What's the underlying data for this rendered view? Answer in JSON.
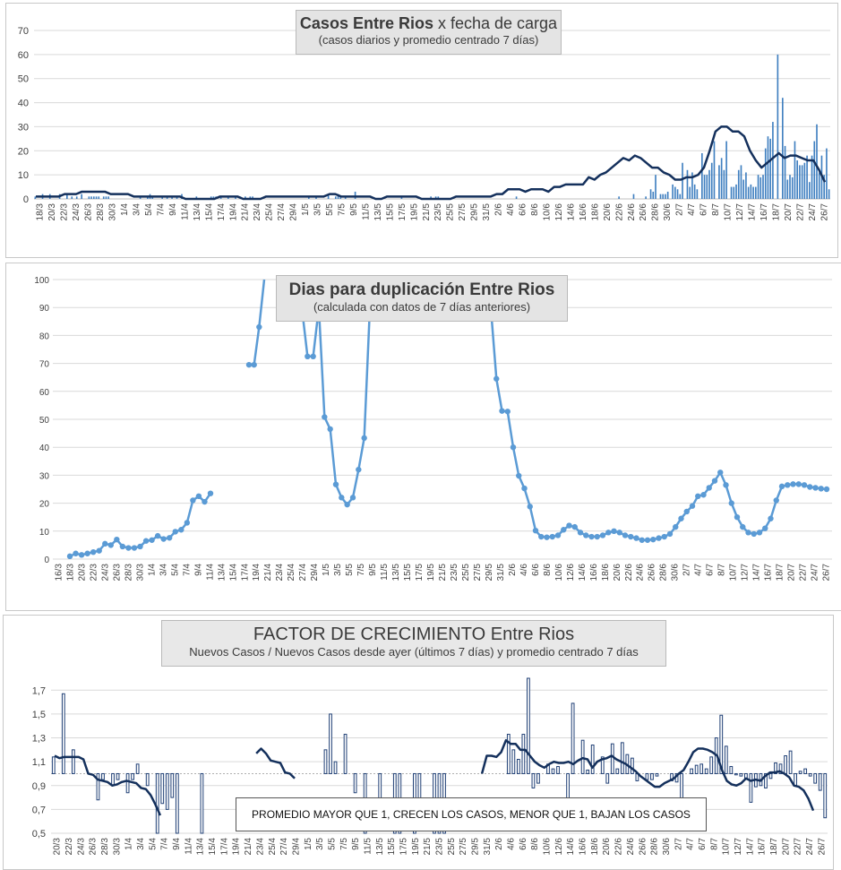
{
  "colors": {
    "bar": "#3f7fc0",
    "line1": "#14305c",
    "line2": "#5b9bd5",
    "bar3": "#1f3f75",
    "grid": "#d9d9d9",
    "axis": "#bfbfbf",
    "text": "#404040"
  },
  "charts": [
    {
      "title_bold": "Casos Entre Rios",
      "title_rest": " x fecha de carga",
      "subtitle": "(casos diarios y promedio  centrado 7 días)"
    },
    {
      "title": "Dias para duplicación Entre Rios",
      "subtitle": "(calculada con datos de 7 días anteriores)"
    },
    {
      "title_a": "FACTOR DE CRECIMIENTO",
      "title_b": " Entre Rios",
      "subtitle": "Nuevos Casos  / Nuevos Casos desde ayer (últimos 7 días) y promedio  centrado 7 días",
      "note": "PROMEDIO MAYOR QUE 1, CRECEN LOS CASOS, MENOR QUE 1, BAJAN LOS CASOS"
    }
  ],
  "chart_data": [
    {
      "type": "bar",
      "title": "Casos Entre Rios x fecha de carga",
      "subtitle": "(casos diarios y promedio  centrado 7 días)",
      "ylim": [
        0,
        70
      ],
      "y_ticks": [
        0,
        10,
        20,
        30,
        40,
        50,
        60,
        70
      ],
      "x_tick_labels": [
        "18/3",
        "20/3",
        "22/3",
        "24/3",
        "26/3",
        "28/3",
        "30/3",
        "1/4",
        "3/4",
        "5/4",
        "7/4",
        "9/4",
        "11/4",
        "13/4",
        "15/4",
        "17/4",
        "19/4",
        "21/4",
        "23/4",
        "25/4",
        "27/4",
        "29/4",
        "1/5",
        "3/5",
        "5/5",
        "7/5",
        "9/5",
        "11/5",
        "13/5",
        "15/5",
        "17/5",
        "19/5",
        "21/5",
        "23/5",
        "25/5",
        "27/5",
        "29/5",
        "31/5",
        "2/6",
        "4/6",
        "6/6",
        "8/6",
        "10/6",
        "12/6",
        "14/6",
        "16/6",
        "18/6",
        "20/6",
        "22/6",
        "24/6",
        "26/6",
        "28/6",
        "30/6",
        "2/7",
        "4/7",
        "6/7",
        "8/7",
        "10/7",
        "12/7",
        "14/7",
        "16/7",
        "18/7",
        "20/7",
        "22/7",
        "24/7",
        "26/7"
      ],
      "series": [
        {
          "kind": "bar",
          "values": [
            1,
            0,
            0,
            2,
            0,
            0,
            2,
            0,
            0,
            0,
            2,
            0,
            0,
            2,
            0,
            1,
            0,
            1,
            0,
            2,
            0,
            0,
            1,
            1,
            1,
            1,
            1,
            0,
            1,
            1,
            1,
            0,
            0,
            0,
            0,
            0,
            0,
            0,
            0,
            0,
            0,
            0,
            0,
            1,
            0,
            0,
            1,
            2,
            1,
            0,
            0,
            0,
            1,
            0,
            1,
            0,
            1,
            0,
            1,
            0,
            2,
            0,
            0,
            0,
            0,
            0,
            1,
            0,
            0,
            0,
            0,
            0,
            1,
            1,
            1,
            0,
            1,
            0,
            0,
            1,
            0,
            0,
            1,
            0,
            1,
            0,
            1,
            0,
            1,
            1,
            0,
            0,
            0,
            0,
            0,
            0,
            0,
            0,
            0,
            0,
            0,
            0,
            0,
            0,
            0,
            0,
            0,
            0,
            0,
            0,
            0,
            0,
            1,
            0,
            0,
            1,
            0,
            0,
            0,
            0,
            2,
            0,
            0,
            1,
            2,
            1,
            0,
            1,
            0,
            0,
            0,
            3,
            0,
            0,
            0,
            0,
            0,
            0,
            0,
            0,
            0,
            0,
            0,
            0,
            0,
            0,
            0,
            0,
            0,
            0,
            1,
            0,
            0,
            0,
            0,
            0,
            0,
            0,
            0,
            0,
            0,
            0,
            1,
            0,
            1,
            1,
            0,
            0,
            0,
            0,
            0,
            0,
            0,
            0,
            0,
            0,
            0,
            0,
            0,
            0,
            0,
            0,
            0,
            0,
            0,
            0,
            0,
            0,
            0,
            0,
            0,
            0,
            0,
            0,
            0,
            0,
            0,
            1,
            0,
            0,
            0,
            0,
            0,
            0,
            0,
            0,
            0,
            0,
            0,
            0,
            0,
            0,
            0,
            0,
            0,
            0,
            0,
            0,
            0,
            0,
            0,
            0,
            0,
            0,
            0,
            0,
            0,
            0,
            0,
            0,
            0,
            0,
            0,
            0,
            0,
            0,
            0,
            0,
            0,
            1,
            0,
            0,
            0,
            0,
            0,
            2,
            0,
            0,
            0,
            0,
            1,
            0,
            4,
            3,
            10,
            0,
            2,
            2,
            2,
            3,
            0,
            6,
            5,
            4,
            2,
            15,
            0,
            12,
            5,
            11,
            6,
            4,
            0,
            19,
            10,
            10,
            12,
            15,
            24,
            0,
            14,
            17,
            12,
            24,
            0,
            5,
            5,
            6,
            12,
            14,
            8,
            11,
            5,
            6,
            5,
            5,
            10,
            9,
            10,
            21,
            26,
            25,
            32,
            0,
            60,
            0,
            42,
            22,
            8,
            10,
            9,
            24,
            16,
            14,
            14,
            15,
            18,
            7,
            18,
            24,
            31,
            11,
            18,
            10,
            21,
            4
          ]
        },
        {
          "kind": "line",
          "values": [
            1,
            1,
            1,
            1,
            1,
            2,
            2,
            2,
            3,
            3,
            3,
            3,
            3,
            2,
            2,
            2,
            2,
            1,
            1,
            1,
            1,
            1,
            1,
            1,
            1,
            1,
            0,
            0,
            0,
            0,
            0,
            0,
            1,
            1,
            1,
            1,
            0,
            0,
            0,
            0,
            1,
            1,
            1,
            1,
            1,
            1,
            1,
            1,
            1,
            1,
            1,
            2,
            2,
            1,
            1,
            1,
            1,
            1,
            1,
            0,
            0,
            1,
            1,
            1,
            1,
            1,
            1,
            0,
            0,
            0,
            0,
            0,
            0,
            1,
            1,
            1,
            1,
            1,
            1,
            1,
            2,
            2,
            4,
            4,
            4,
            3,
            4,
            4,
            4,
            3,
            5,
            5,
            6,
            6,
            6,
            6,
            9,
            8,
            10,
            11,
            13,
            15,
            17,
            16,
            18,
            17,
            15,
            13,
            13,
            11,
            10,
            8,
            8,
            9,
            9,
            10,
            13,
            20,
            28,
            30,
            30,
            28,
            28,
            26,
            20,
            16,
            13,
            15,
            17,
            19,
            17,
            18,
            18,
            17,
            16,
            16,
            12,
            7
          ]
        }
      ]
    },
    {
      "type": "line",
      "title": "Dias para duplicación Entre Rios",
      "subtitle": "(calculada con datos de 7 días anteriores)",
      "ylim": [
        0,
        100
      ],
      "y_ticks": [
        0,
        10,
        20,
        30,
        40,
        50,
        60,
        70,
        80,
        90,
        100
      ],
      "x_tick_labels": [
        "16/3",
        "18/3",
        "20/3",
        "22/3",
        "24/3",
        "26/3",
        "28/3",
        "30/3",
        "1/4",
        "3/4",
        "5/4",
        "7/4",
        "9/4",
        "11/4",
        "13/4",
        "15/4",
        "17/4",
        "19/4",
        "21/4",
        "23/4",
        "25/4",
        "27/4",
        "29/4",
        "1/5",
        "3/5",
        "5/5",
        "7/5",
        "9/5",
        "11/5",
        "13/5",
        "15/5",
        "17/5",
        "19/5",
        "21/5",
        "23/5",
        "25/5",
        "27/5",
        "29/5",
        "31/5",
        "2/6",
        "4/6",
        "6/6",
        "8/6",
        "10/6",
        "12/6",
        "14/6",
        "16/6",
        "18/6",
        "20/6",
        "22/6",
        "24/6",
        "26/6",
        "28/6",
        "30/6",
        "2/7",
        "4/7",
        "6/7",
        "8/7",
        "10/7",
        "12/7",
        "14/7",
        "16/7",
        "18/7",
        "20/7",
        "22/7",
        "24/7",
        "26/7"
      ],
      "segments": [
        [
          1,
          2,
          1.5,
          2,
          2.5,
          3,
          5.5,
          5,
          7,
          4.5,
          4,
          4,
          4.5,
          6.5,
          6.8,
          8.3,
          7.2,
          7.6,
          9.8,
          10.5,
          13,
          21,
          22.5,
          20.5,
          23.5
        ],
        [
          69.5,
          69.5,
          83,
          100
        ],
        [
          90,
          72.5,
          72.5,
          90,
          50.8,
          46.5,
          26.7,
          22,
          19.5,
          22,
          32,
          43.3,
          90
        ],
        [
          90,
          64.5,
          53,
          52.8,
          40,
          29.8,
          25.3,
          18.8,
          10.2,
          8,
          7.8,
          8,
          8.5,
          10.5,
          12,
          11.5,
          9.5,
          8.5,
          8,
          8,
          8.5,
          9.5,
          10,
          9.5,
          8.5,
          8,
          7.5,
          6.8,
          6.8,
          7,
          7.5,
          8,
          9,
          11.5,
          14.5,
          17,
          19,
          22.5,
          23,
          25.5,
          28,
          31,
          26.5,
          20,
          15,
          11.5,
          9.5,
          9,
          9.5,
          11,
          14.5,
          21,
          26,
          26.5,
          26.8,
          26.8,
          26.5,
          25.8,
          25.5,
          25.2,
          25
        ]
      ]
    },
    {
      "type": "bar",
      "title": "FACTOR DE CRECIMIENTO Entre Rios",
      "subtitle": "Nuevos Casos  / Nuevos Casos desde ayer (últimos 7 días) y promedio  centrado 7 días",
      "ylim": [
        0.5,
        1.8
      ],
      "baseline": 1.0,
      "y_ticks": [
        "0,5",
        "0,7",
        "0,9",
        "1,1",
        "1,3",
        "1,5",
        "1,7"
      ],
      "x_tick_labels": [
        "20/3",
        "22/3",
        "24/3",
        "26/3",
        "28/3",
        "30/3",
        "1/4",
        "3/4",
        "5/4",
        "7/4",
        "9/4",
        "11/4",
        "13/4",
        "15/4",
        "17/4",
        "19/4",
        "21/4",
        "23/4",
        "25/4",
        "27/4",
        "29/4",
        "1/5",
        "3/5",
        "5/5",
        "7/5",
        "9/5",
        "11/5",
        "13/5",
        "15/5",
        "17/5",
        "19/5",
        "21/5",
        "23/5",
        "25/5",
        "27/5",
        "29/5",
        "31/5",
        "2/6",
        "4/6",
        "6/6",
        "8/6",
        "10/6",
        "12/6",
        "14/6",
        "16/6",
        "18/6",
        "20/6",
        "22/6",
        "24/6",
        "26/6",
        "28/6",
        "30/6",
        "2/7",
        "4/7",
        "6/7",
        "8/7",
        "10/7",
        "12/7",
        "14/7",
        "16/7",
        "18/7",
        "20/7",
        "22/7",
        "24/7",
        "26/7"
      ],
      "series": [
        {
          "kind": "bar",
          "values": [
            1.14,
            1.0,
            1.67,
            1.0,
            1.2,
            1.0,
            1.0,
            1.0,
            1.0,
            0.78,
            0.95,
            1.0,
            0.9,
            0.95,
            1.0,
            0.84,
            0.95,
            1.08,
            1.0,
            0.9,
            1.0,
            0.5,
            0.75,
            0.7,
            0.8,
            0.5,
            1.0,
            1.0,
            1.0,
            1.0,
            0.5,
            1.0,
            1.0,
            1.0,
            1.0,
            1.0,
            1.0,
            1.0,
            1.0,
            1.0,
            1.0,
            1.0,
            1.0,
            1.0,
            1.0,
            1.0,
            1.0,
            1.0,
            1.0,
            1.0,
            1.0,
            1.0,
            1.0,
            1.0,
            1.0,
            1.2,
            1.5,
            1.1,
            1.0,
            1.33,
            1.0,
            0.84,
            1.0,
            0.5,
            1.0,
            1.0,
            0.7,
            1.0,
            1.0,
            0.5,
            0.5,
            1.0,
            1.0,
            0.5,
            0.7,
            1.0,
            1.0,
            0.5,
            0.5,
            0.5,
            1.0,
            1.0,
            1.0,
            1.0,
            1.0,
            1.0,
            1.0,
            1.0,
            1.0,
            1.0,
            1.0,
            1.0,
            1.33,
            1.2,
            1.12,
            1.33,
            1.8,
            0.88,
            0.92,
            1.0,
            1.08,
            1.04,
            1.06,
            1.0,
            0.74,
            1.59,
            1.0,
            1.28,
            1.03,
            1.24,
            1.0,
            1.14,
            0.92,
            1.25,
            1.04,
            1.26,
            1.16,
            1.13,
            0.94,
            1.0,
            0.95,
            0.95,
            0.98,
            1.0,
            1.0,
            0.94,
            0.93,
            0.76,
            1.0,
            1.04,
            1.07,
            1.08,
            1.04,
            1.14,
            1.3,
            1.49,
            1.23,
            1.06,
            0.99,
            0.98,
            0.96,
            0.76,
            0.89,
            0.9,
            0.88,
            0.96,
            1.09,
            1.08,
            1.15,
            1.19,
            0.9,
            1.02,
            1.04,
            0.98,
            0.92,
            0.86,
            0.63
          ]
        },
        {
          "kind": "line",
          "values": [
            1.15,
            1.13,
            1.14,
            1.14,
            1.14,
            1.14,
            1.12,
            1.0,
            0.99,
            0.95,
            0.94,
            0.93,
            0.9,
            0.91,
            0.93,
            0.94,
            0.93,
            0.92,
            0.88,
            0.87,
            0.82,
            0.74,
            0.65,
            null,
            null,
            null,
            null,
            null,
            null,
            null,
            null,
            null,
            null,
            null,
            null,
            null,
            null,
            null,
            null,
            null,
            null,
            null,
            1.17,
            1.21,
            1.17,
            1.11,
            1.1,
            1.09,
            1.01,
            1.0,
            0.96,
            null,
            null,
            null,
            null,
            null,
            null,
            null,
            null,
            null,
            null,
            null,
            null,
            null,
            null,
            null,
            null,
            null,
            null,
            null,
            null,
            null,
            null,
            null,
            null,
            null,
            null,
            null,
            null,
            null,
            null,
            null,
            null,
            null,
            null,
            null,
            null,
            null,
            null,
            1.0,
            1.15,
            1.15,
            1.14,
            1.18,
            1.28,
            1.25,
            1.25,
            1.2,
            1.2,
            1.15,
            1.1,
            1.07,
            1.05,
            1.08,
            1.1,
            1.09,
            1.09,
            1.1,
            1.08,
            1.11,
            1.13,
            1.12,
            1.05,
            1.1,
            1.12,
            1.13,
            1.15,
            1.12,
            1.1,
            1.08,
            1.05,
            1.02,
            0.98,
            0.95,
            0.92,
            0.89,
            0.89,
            0.92,
            0.94,
            0.96,
            1.0,
            1.03,
            1.1,
            1.18,
            1.21,
            1.21,
            1.2,
            1.18,
            1.15,
            1.03,
            0.94,
            0.91,
            0.9,
            0.92,
            0.96,
            0.94,
            0.95,
            0.94,
            0.98,
            1.01,
            1.01,
            1.02,
            1.0,
            0.97,
            0.9,
            0.89,
            0.86,
            0.79,
            0.69
          ]
        }
      ]
    }
  ]
}
